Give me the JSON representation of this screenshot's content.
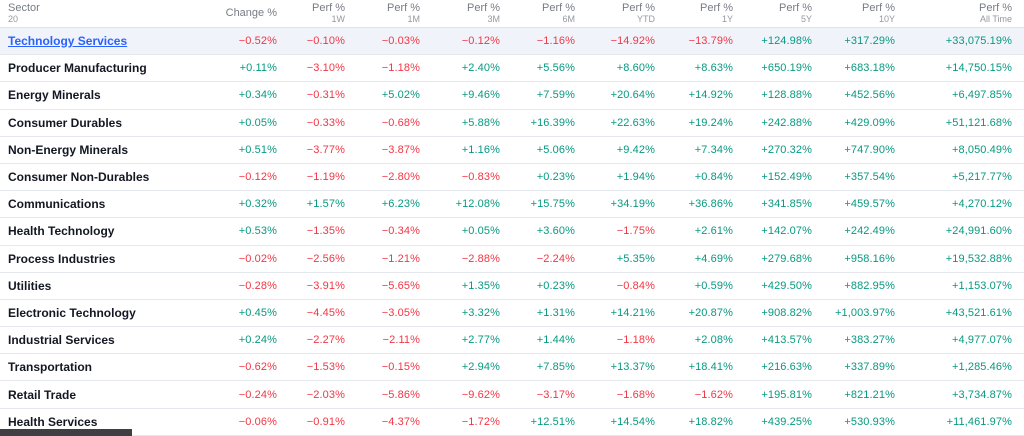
{
  "table": {
    "sector_header": {
      "line1": "Sector",
      "line2": "20"
    },
    "columns": [
      {
        "line1": "Change %",
        "line2": ""
      },
      {
        "line1": "Perf %",
        "line2": "1W"
      },
      {
        "line1": "Perf %",
        "line2": "1M"
      },
      {
        "line1": "Perf %",
        "line2": "3M"
      },
      {
        "line1": "Perf %",
        "line2": "6M"
      },
      {
        "line1": "Perf %",
        "line2": "YTD"
      },
      {
        "line1": "Perf %",
        "line2": "1Y"
      },
      {
        "line1": "Perf %",
        "line2": "5Y"
      },
      {
        "line1": "Perf %",
        "line2": "10Y"
      },
      {
        "line1": "Perf %",
        "line2": "All Time"
      }
    ],
    "rows": [
      {
        "name": "Technology Services",
        "is_link": true,
        "highlighted": true,
        "values": [
          "−0.52%",
          "−0.10%",
          "−0.03%",
          "−0.12%",
          "−1.16%",
          "−14.92%",
          "−13.79%",
          "+124.98%",
          "+317.29%",
          "+33,075.19%"
        ]
      },
      {
        "name": "Producer Manufacturing",
        "is_link": false,
        "highlighted": false,
        "values": [
          "+0.11%",
          "−3.10%",
          "−1.18%",
          "+2.40%",
          "+5.56%",
          "+8.60%",
          "+8.63%",
          "+650.19%",
          "+683.18%",
          "+14,750.15%"
        ]
      },
      {
        "name": "Energy Minerals",
        "is_link": false,
        "highlighted": false,
        "values": [
          "+0.34%",
          "−0.31%",
          "+5.02%",
          "+9.46%",
          "+7.59%",
          "+20.64%",
          "+14.92%",
          "+128.88%",
          "+452.56%",
          "+6,497.85%"
        ]
      },
      {
        "name": "Consumer Durables",
        "is_link": false,
        "highlighted": false,
        "values": [
          "+0.05%",
          "−0.33%",
          "−0.68%",
          "+5.88%",
          "+16.39%",
          "+22.63%",
          "+19.24%",
          "+242.88%",
          "+429.09%",
          "+51,121.68%"
        ]
      },
      {
        "name": "Non-Energy Minerals",
        "is_link": false,
        "highlighted": false,
        "values": [
          "+0.51%",
          "−3.77%",
          "−3.87%",
          "+1.16%",
          "+5.06%",
          "+9.42%",
          "+7.34%",
          "+270.32%",
          "+747.90%",
          "+8,050.49%"
        ]
      },
      {
        "name": "Consumer Non-Durables",
        "is_link": false,
        "highlighted": false,
        "values": [
          "−0.12%",
          "−1.19%",
          "−2.80%",
          "−0.83%",
          "+0.23%",
          "+1.94%",
          "+0.84%",
          "+152.49%",
          "+357.54%",
          "+5,217.77%"
        ]
      },
      {
        "name": "Communications",
        "is_link": false,
        "highlighted": false,
        "values": [
          "+0.32%",
          "+1.57%",
          "+6.23%",
          "+12.08%",
          "+15.75%",
          "+34.19%",
          "+36.86%",
          "+341.85%",
          "+459.57%",
          "+4,270.12%"
        ]
      },
      {
        "name": "Health Technology",
        "is_link": false,
        "highlighted": false,
        "values": [
          "+0.53%",
          "−1.35%",
          "−0.34%",
          "+0.05%",
          "+3.60%",
          "−1.75%",
          "+2.61%",
          "+142.07%",
          "+242.49%",
          "+24,991.60%"
        ]
      },
      {
        "name": "Process Industries",
        "is_link": false,
        "highlighted": false,
        "values": [
          "−0.02%",
          "−2.56%",
          "−1.21%",
          "−2.88%",
          "−2.24%",
          "+5.35%",
          "+4.69%",
          "+279.68%",
          "+958.16%",
          "+19,532.88%"
        ]
      },
      {
        "name": "Utilities",
        "is_link": false,
        "highlighted": false,
        "values": [
          "−0.28%",
          "−3.91%",
          "−5.65%",
          "+1.35%",
          "+0.23%",
          "−0.84%",
          "+0.59%",
          "+429.50%",
          "+882.95%",
          "+1,153.07%"
        ]
      },
      {
        "name": "Electronic Technology",
        "is_link": false,
        "highlighted": false,
        "values": [
          "+0.45%",
          "−4.45%",
          "−3.05%",
          "+3.32%",
          "+1.31%",
          "+14.21%",
          "+20.87%",
          "+908.82%",
          "+1,003.97%",
          "+43,521.61%"
        ]
      },
      {
        "name": "Industrial Services",
        "is_link": false,
        "highlighted": false,
        "values": [
          "+0.24%",
          "−2.27%",
          "−2.11%",
          "+2.77%",
          "+1.44%",
          "−1.18%",
          "+2.08%",
          "+413.57%",
          "+383.27%",
          "+4,977.07%"
        ]
      },
      {
        "name": "Transportation",
        "is_link": false,
        "highlighted": false,
        "values": [
          "−0.62%",
          "−1.53%",
          "−0.15%",
          "+2.94%",
          "+7.85%",
          "+13.37%",
          "+18.41%",
          "+216.63%",
          "+337.89%",
          "+1,285.46%"
        ]
      },
      {
        "name": "Retail Trade",
        "is_link": false,
        "highlighted": false,
        "values": [
          "−0.24%",
          "−2.03%",
          "−5.86%",
          "−9.62%",
          "−3.17%",
          "−1.68%",
          "−1.62%",
          "+195.81%",
          "+821.21%",
          "+3,734.87%"
        ]
      },
      {
        "name": "Health Services",
        "is_link": false,
        "highlighted": false,
        "values": [
          "−0.06%",
          "−0.91%",
          "−4.37%",
          "−1.72%",
          "+12.51%",
          "+14.54%",
          "+18.82%",
          "+439.25%",
          "+530.93%",
          "+11,461.97%"
        ]
      }
    ]
  },
  "colors": {
    "positive": "#089981",
    "negative": "#F23645",
    "link": "#2962FF",
    "highlight_row_bg": "#F0F3FA"
  }
}
